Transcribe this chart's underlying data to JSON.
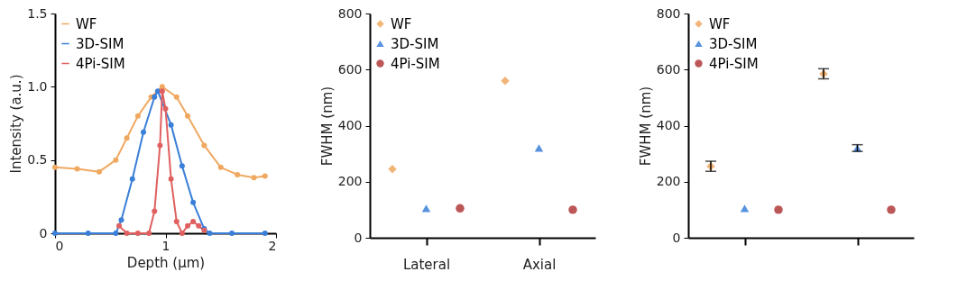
{
  "chart_data": [
    {
      "type": "line",
      "xlabel": "Depth (µm)",
      "ylabel": "Intensity (a.u.)",
      "xlim": [
        0,
        2
      ],
      "xticks": [
        0,
        1,
        2
      ],
      "ylim": [
        0,
        1.5
      ],
      "yticks": [
        0,
        0.5,
        {
          "value": 1,
          "label": "1.0"
        },
        1.5
      ],
      "legend": "top left",
      "marker": "circle",
      "grid": false,
      "series": [
        {
          "name": "WF",
          "color": "#f0a860",
          "x": [
            0,
            0.2,
            0.4,
            0.55,
            0.65,
            0.75,
            0.87,
            0.97,
            1.1,
            1.2,
            1.35,
            1.5,
            1.65,
            1.8,
            1.9
          ],
          "values": [
            0.45,
            0.44,
            0.42,
            0.5,
            0.65,
            0.8,
            0.93,
            1.0,
            0.93,
            0.8,
            0.6,
            0.45,
            0.4,
            0.38,
            0.39
          ]
        },
        {
          "name": "3D-SIM",
          "color": "#3a7fd8",
          "x": [
            0,
            0.3,
            0.55,
            0.6,
            0.7,
            0.8,
            0.9,
            0.93,
            1.05,
            1.15,
            1.25,
            1.35,
            1.4,
            1.6,
            1.9
          ],
          "values": [
            0,
            0,
            0,
            0.09,
            0.37,
            0.69,
            0.93,
            0.97,
            0.74,
            0.46,
            0.21,
            0.03,
            0,
            0,
            0
          ]
        },
        {
          "name": "4Pi-SIM",
          "color": "#e06060",
          "x": [
            0.58,
            0.65,
            0.75,
            0.85,
            0.9,
            0.95,
            0.97,
            1.0,
            1.05,
            1.1,
            1.15,
            1.2,
            1.25,
            1.3,
            1.35
          ],
          "values": [
            0.05,
            0,
            0,
            0,
            0.15,
            0.6,
            0.97,
            0.85,
            0.37,
            0.08,
            0,
            0.05,
            0.08,
            0.05,
            0.02
          ]
        }
      ]
    },
    {
      "type": "scatter",
      "ylabel": "FWHM (nm)",
      "categories": [
        "Lateral",
        "Axial"
      ],
      "ylim": [
        0,
        800
      ],
      "yticks": [
        0,
        200,
        400,
        600,
        800
      ],
      "legend": "top left",
      "grid": false,
      "series": [
        {
          "name": "WF",
          "color": "#f0a860",
          "marker": "diamond",
          "values": [
            245,
            560
          ]
        },
        {
          "name": "3D-SIM",
          "color": "#3a7fd8",
          "marker": "triangle",
          "values": [
            105,
            320
          ]
        },
        {
          "name": "4Pi-SIM",
          "color": "#b03a3a",
          "marker": "circle",
          "values": [
            105,
            100
          ]
        }
      ]
    },
    {
      "type": "scatter",
      "ylabel": "FWHM (nm)",
      "categories": [
        null,
        null
      ],
      "ylim": [
        0,
        800
      ],
      "yticks": [
        0,
        200,
        400,
        600,
        800
      ],
      "legend": "top left",
      "grid": false,
      "series": [
        {
          "name": "WF",
          "color": "#f0a860",
          "marker": "diamond",
          "values": [
            255,
            585
          ],
          "errors": [
            18,
            18
          ]
        },
        {
          "name": "3D-SIM",
          "color": "#3a7fd8",
          "marker": "triangle",
          "values": [
            105,
            320
          ],
          "errors": [
            null,
            12
          ]
        },
        {
          "name": "4Pi-SIM",
          "color": "#b03a3a",
          "marker": "circle",
          "values": [
            100,
            100
          ]
        }
      ]
    }
  ]
}
